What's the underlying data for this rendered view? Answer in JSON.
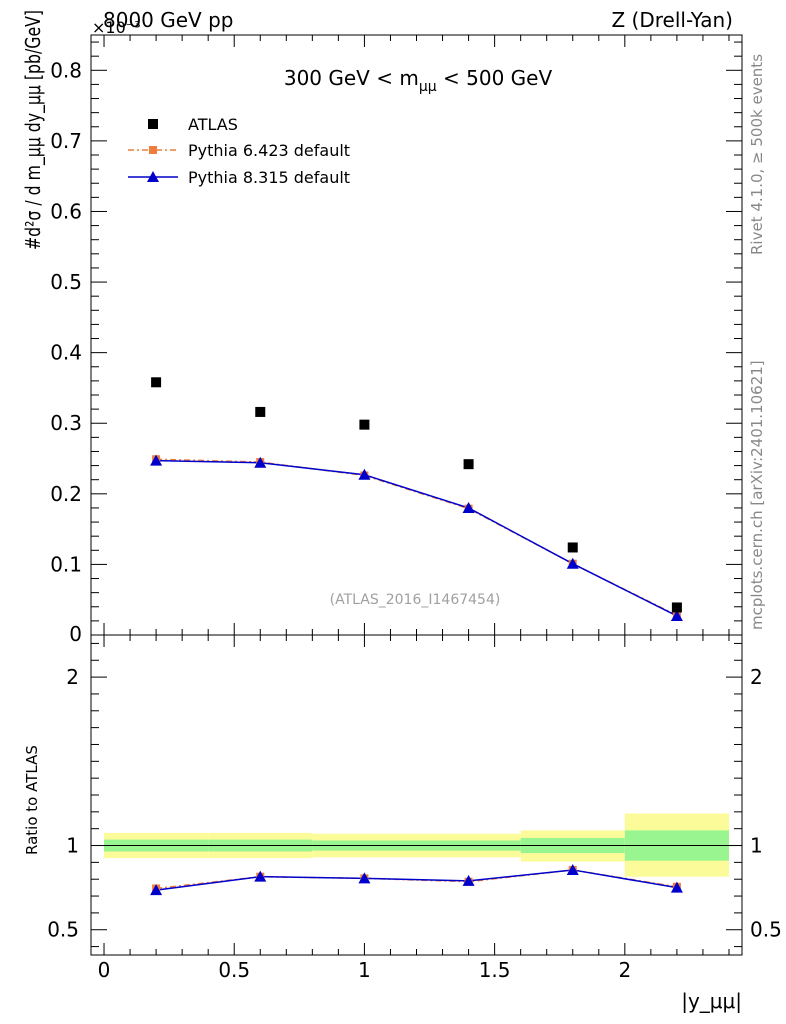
{
  "header": {
    "left": "8000 GeV pp",
    "exponent": "×10⁻³",
    "right": "Z (Drell-Yan)"
  },
  "side_labels": {
    "rivet": "Rivet 4.1.0, ≥ 500k events",
    "mcplots": "mcplots.cern.ch [arXiv:2401.10621]"
  },
  "chart_data": {
    "type": "scatter",
    "title": "300 GeV < m_μμ < 500 GeV",
    "title_main": "300 GeV < m",
    "title_sub": "μμ",
    "title_tail": " < 500 GeV",
    "watermark": "(ATLAS_2016_I1467454)",
    "xlabel": "|y_μμ|",
    "ylabel": "#d²σ / d m_μμ dy_μμ [pb/GeV]",
    "ratio_ylabel": "Ratio to ATLAS",
    "xlim": [
      -0.05,
      2.45
    ],
    "ylim": [
      0,
      0.85
    ],
    "ratio_ylim": [
      0.35,
      2.25
    ],
    "x_ticks": [
      "0",
      "0.5",
      "1",
      "1.5",
      "2"
    ],
    "y_ticks": [
      "0.1",
      "0.2",
      "0.3",
      "0.4",
      "0.5",
      "0.6",
      "0.7",
      "0.8"
    ],
    "ratio_y_ticks": [
      "0.5",
      "1",
      "2"
    ],
    "x": [
      0.2,
      0.6,
      1.0,
      1.4,
      1.8,
      2.2
    ],
    "bin_edges": [
      0,
      0.4,
      0.8,
      1.2,
      1.6,
      2.0,
      2.4
    ],
    "series": [
      {
        "name": "ATLAS",
        "color": "#000000",
        "marker": "square",
        "values": [
          0.358,
          0.316,
          0.298,
          0.242,
          0.124,
          0.039
        ]
      },
      {
        "name": "Pythia 6.423 default",
        "color": "#ee7d3b",
        "marker": "square-dashed",
        "values": [
          0.249,
          0.245,
          0.226,
          0.179,
          0.101,
          0.028
        ]
      },
      {
        "name": "Pythia 8.315 default",
        "color": "#0000cc",
        "marker": "triangle",
        "values": [
          0.247,
          0.244,
          0.227,
          0.18,
          0.101,
          0.027
        ]
      }
    ],
    "ratio": {
      "Pythia 6.423 default": [
        0.745,
        0.815,
        0.805,
        0.785,
        0.855,
        0.755
      ],
      "Pythia 8.315 default": [
        0.735,
        0.815,
        0.805,
        0.79,
        0.855,
        0.75
      ]
    },
    "bands": {
      "inner": [
        [
          0.965,
          1.035
        ],
        [
          0.965,
          1.035
        ],
        [
          0.97,
          1.03
        ],
        [
          0.97,
          1.03
        ],
        [
          0.955,
          1.045
        ],
        [
          0.91,
          1.09
        ]
      ],
      "outer": [
        [
          0.925,
          1.075
        ],
        [
          0.925,
          1.075
        ],
        [
          0.93,
          1.07
        ],
        [
          0.93,
          1.07
        ],
        [
          0.905,
          1.09
        ],
        [
          0.815,
          1.19
        ]
      ]
    },
    "band_colors": {
      "inner": "#99f58f",
      "outer": "#fbfb9a"
    }
  }
}
